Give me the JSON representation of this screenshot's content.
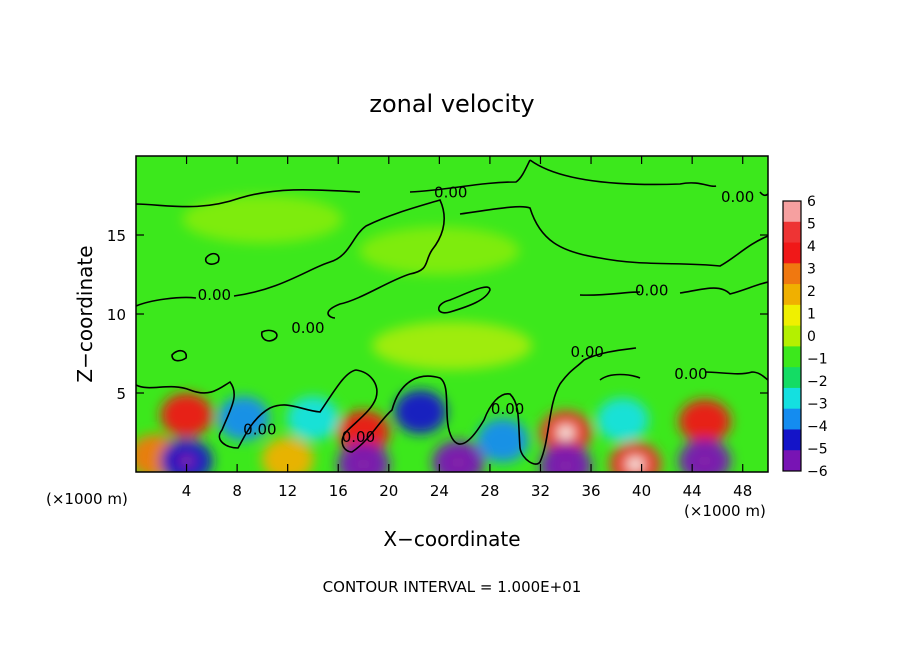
{
  "chart_data": {
    "type": "heatmap",
    "title": "zonal velocity",
    "xlabel": "X−coordinate",
    "ylabel": "Z−coordinate",
    "x_unit_left": "(×1000 m)",
    "x_unit_right": "(×1000 m)",
    "footer": "CONTOUR INTERVAL = 1.000E+01",
    "xlim": [
      0,
      50
    ],
    "ylim": [
      0,
      20
    ],
    "x_ticks": [
      4,
      8,
      12,
      16,
      20,
      24,
      28,
      32,
      36,
      40,
      44,
      48
    ],
    "y_ticks": [
      5,
      10,
      15
    ],
    "grid": false,
    "colorbar": {
      "placement": "right",
      "ticks": [
        "6",
        "5",
        "4",
        "3",
        "2",
        "1",
        "0",
        "−1",
        "−2",
        "−3",
        "−4",
        "−5",
        "−6"
      ],
      "range": [
        -6,
        6
      ],
      "colors": [
        "#f6a0a0",
        "#ee3434",
        "#f01818",
        "#f07810",
        "#f0b000",
        "#f0f000",
        "#b4f000",
        "#3ce81c",
        "#14dc64",
        "#14e0e0",
        "#148cf0",
        "#1414c8",
        "#7814b4"
      ]
    },
    "contour_labels": [
      {
        "text": "0.00",
        "x": 24.9,
        "z": 17.7
      },
      {
        "text": "0.00",
        "x": 47.6,
        "z": 17.4
      },
      {
        "text": "0.00",
        "x": 6.2,
        "z": 11.2
      },
      {
        "text": "0.00",
        "x": 13.6,
        "z": 9.1
      },
      {
        "text": "0.00",
        "x": 40.8,
        "z": 11.5
      },
      {
        "text": "0.00",
        "x": 35.7,
        "z": 7.6
      },
      {
        "text": "0.00",
        "x": 43.9,
        "z": 6.2
      },
      {
        "text": "0.00",
        "x": 9.8,
        "z": 2.7
      },
      {
        "text": "0.00",
        "x": 17.6,
        "z": 2.2
      },
      {
        "text": "0.00",
        "x": 29.4,
        "z": 4.0
      }
    ],
    "field_features": [
      {
        "x": 4.0,
        "z": 3.6,
        "value": 4.5
      },
      {
        "x": 8.5,
        "z": 3.4,
        "value": -3.5
      },
      {
        "x": 14.0,
        "z": 3.4,
        "value": -3.0
      },
      {
        "x": 18.0,
        "z": 2.5,
        "value": 4.0
      },
      {
        "x": 22.5,
        "z": 3.8,
        "value": -4.5
      },
      {
        "x": 29.0,
        "z": 2.0,
        "value": -3.5
      },
      {
        "x": 34.0,
        "z": 2.5,
        "value": 5.5
      },
      {
        "x": 38.5,
        "z": 3.3,
        "value": -3.0
      },
      {
        "x": 45.0,
        "z": 3.2,
        "value": 4.0
      },
      {
        "x": 1.5,
        "z": 1.0,
        "value": 3.0
      },
      {
        "x": 4.0,
        "z": 0.7,
        "value": -5.0
      },
      {
        "x": 12.0,
        "z": 0.8,
        "value": 2.5
      },
      {
        "x": 18.0,
        "z": 0.5,
        "value": -5.5
      },
      {
        "x": 25.5,
        "z": 0.6,
        "value": -6.0
      },
      {
        "x": 34.0,
        "z": 0.4,
        "value": -5.5
      },
      {
        "x": 39.5,
        "z": 0.5,
        "value": 5.5
      },
      {
        "x": 45.0,
        "z": 0.7,
        "value": -5.5
      },
      {
        "x": 25.0,
        "z": 8.0,
        "value": 1.2
      },
      {
        "x": 24.0,
        "z": 14.0,
        "value": 0.4
      },
      {
        "x": 10.0,
        "z": 16.0,
        "value": 0.5
      }
    ]
  }
}
